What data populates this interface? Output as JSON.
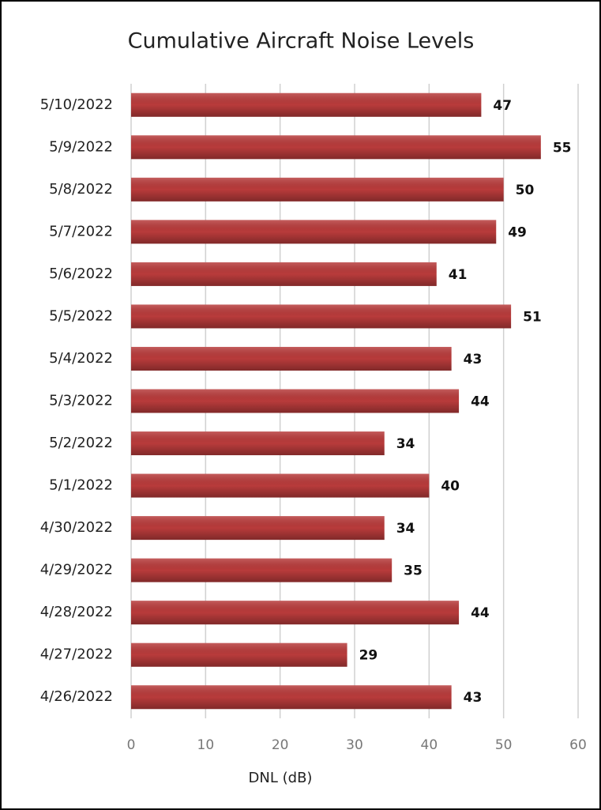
{
  "chart_data": {
    "type": "bar",
    "orientation": "horizontal",
    "title": "Cumulative Aircraft Noise Levels",
    "x_label": "DNL (dB)",
    "categories": [
      "5/10/2022",
      "5/9/2022",
      "5/8/2022",
      "5/7/2022",
      "5/6/2022",
      "5/5/2022",
      "5/4/2022",
      "5/3/2022",
      "5/2/2022",
      "5/1/2022",
      "4/30/2022",
      "4/29/2022",
      "4/28/2022",
      "4/27/2022",
      "4/26/2022"
    ],
    "values": [
      47,
      55,
      50,
      49,
      41,
      51,
      43,
      44,
      34,
      40,
      34,
      35,
      44,
      29,
      43
    ],
    "color": "#b83b3b",
    "xlim": [
      0,
      60
    ],
    "xticks": [
      0,
      10,
      20,
      30,
      40,
      50,
      60
    ],
    "grid": true
  }
}
